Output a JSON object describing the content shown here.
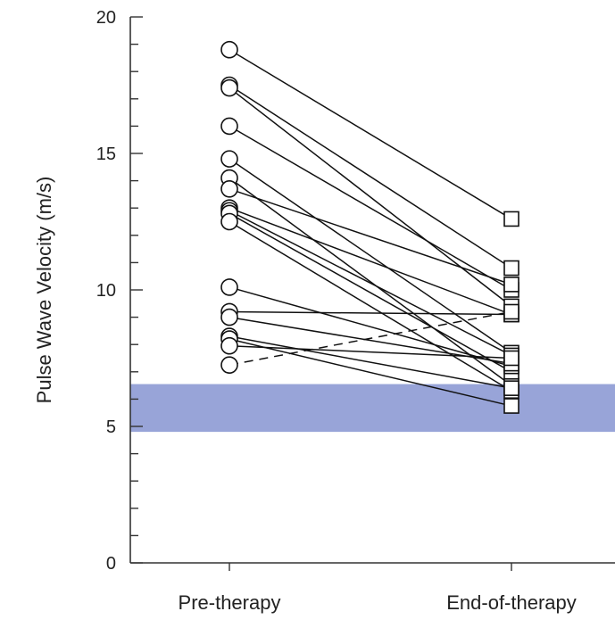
{
  "chart_data": {
    "type": "line",
    "ylabel": "Pulse Wave Velocity (m/s)",
    "xlabel": "",
    "categories": [
      "Pre-therapy",
      "End-of-therapy"
    ],
    "ylim": [
      0,
      20
    ],
    "yticks": [
      "0",
      "5",
      "10",
      "15",
      "20"
    ],
    "y_minor_step": 1,
    "reference_band": {
      "y_low": 4.8,
      "y_high": 6.55,
      "color": "#98a4d8"
    },
    "markers": {
      "pre": "open-circle",
      "end": "open-square"
    },
    "pairs": [
      {
        "pre": 18.8,
        "end": 12.6,
        "style": "solid"
      },
      {
        "pre": 17.5,
        "end": 10.8,
        "style": "solid"
      },
      {
        "pre": 17.4,
        "end": 9.4,
        "style": "solid"
      },
      {
        "pre": 16.0,
        "end": 10.0,
        "style": "solid"
      },
      {
        "pre": 14.8,
        "end": 7.7,
        "style": "solid"
      },
      {
        "pre": 14.1,
        "end": 6.5,
        "style": "solid"
      },
      {
        "pre": 13.7,
        "end": 10.2,
        "style": "solid"
      },
      {
        "pre": 13.0,
        "end": 9.1,
        "style": "solid"
      },
      {
        "pre": 12.9,
        "end": 7.6,
        "style": "solid"
      },
      {
        "pre": 12.8,
        "end": 7.0,
        "style": "solid"
      },
      {
        "pre": 12.5,
        "end": 6.3,
        "style": "solid"
      },
      {
        "pre": 10.1,
        "end": 7.2,
        "style": "solid"
      },
      {
        "pre": 9.2,
        "end": 9.1,
        "style": "solid"
      },
      {
        "pre": 9.0,
        "end": 7.3,
        "style": "solid"
      },
      {
        "pre": 8.3,
        "end": 6.4,
        "style": "solid"
      },
      {
        "pre": 8.2,
        "end": 5.75,
        "style": "solid"
      },
      {
        "pre": 7.95,
        "end": 7.5,
        "style": "solid"
      },
      {
        "pre": 7.25,
        "end": 9.2,
        "style": "dashed"
      }
    ]
  }
}
